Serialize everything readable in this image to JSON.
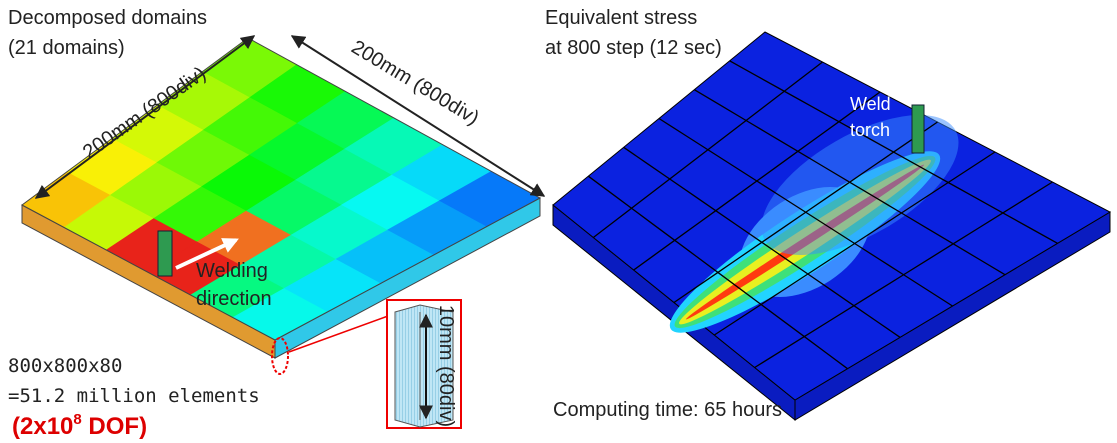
{
  "left_panel": {
    "title": [
      "Decomposed domains",
      "(21 domains)"
    ],
    "dimension_left": "200mm (800div)",
    "dimension_right": "200mm (800div)",
    "welding_label": [
      "Welding",
      "direction"
    ],
    "mesh": "800x800x80",
    "elements": "=51.2 million elements",
    "dof": {
      "open": "(2x10",
      "exponent": "8",
      "close": " DOF)"
    },
    "inset_label": "10mm (80div)"
  },
  "right_panel": {
    "title": [
      "Equivalent stress",
      "at 800 step (12 sec)"
    ],
    "torch_label": [
      "Weld",
      "torch"
    ],
    "computing_time": "Computing time: 65 hours"
  }
}
